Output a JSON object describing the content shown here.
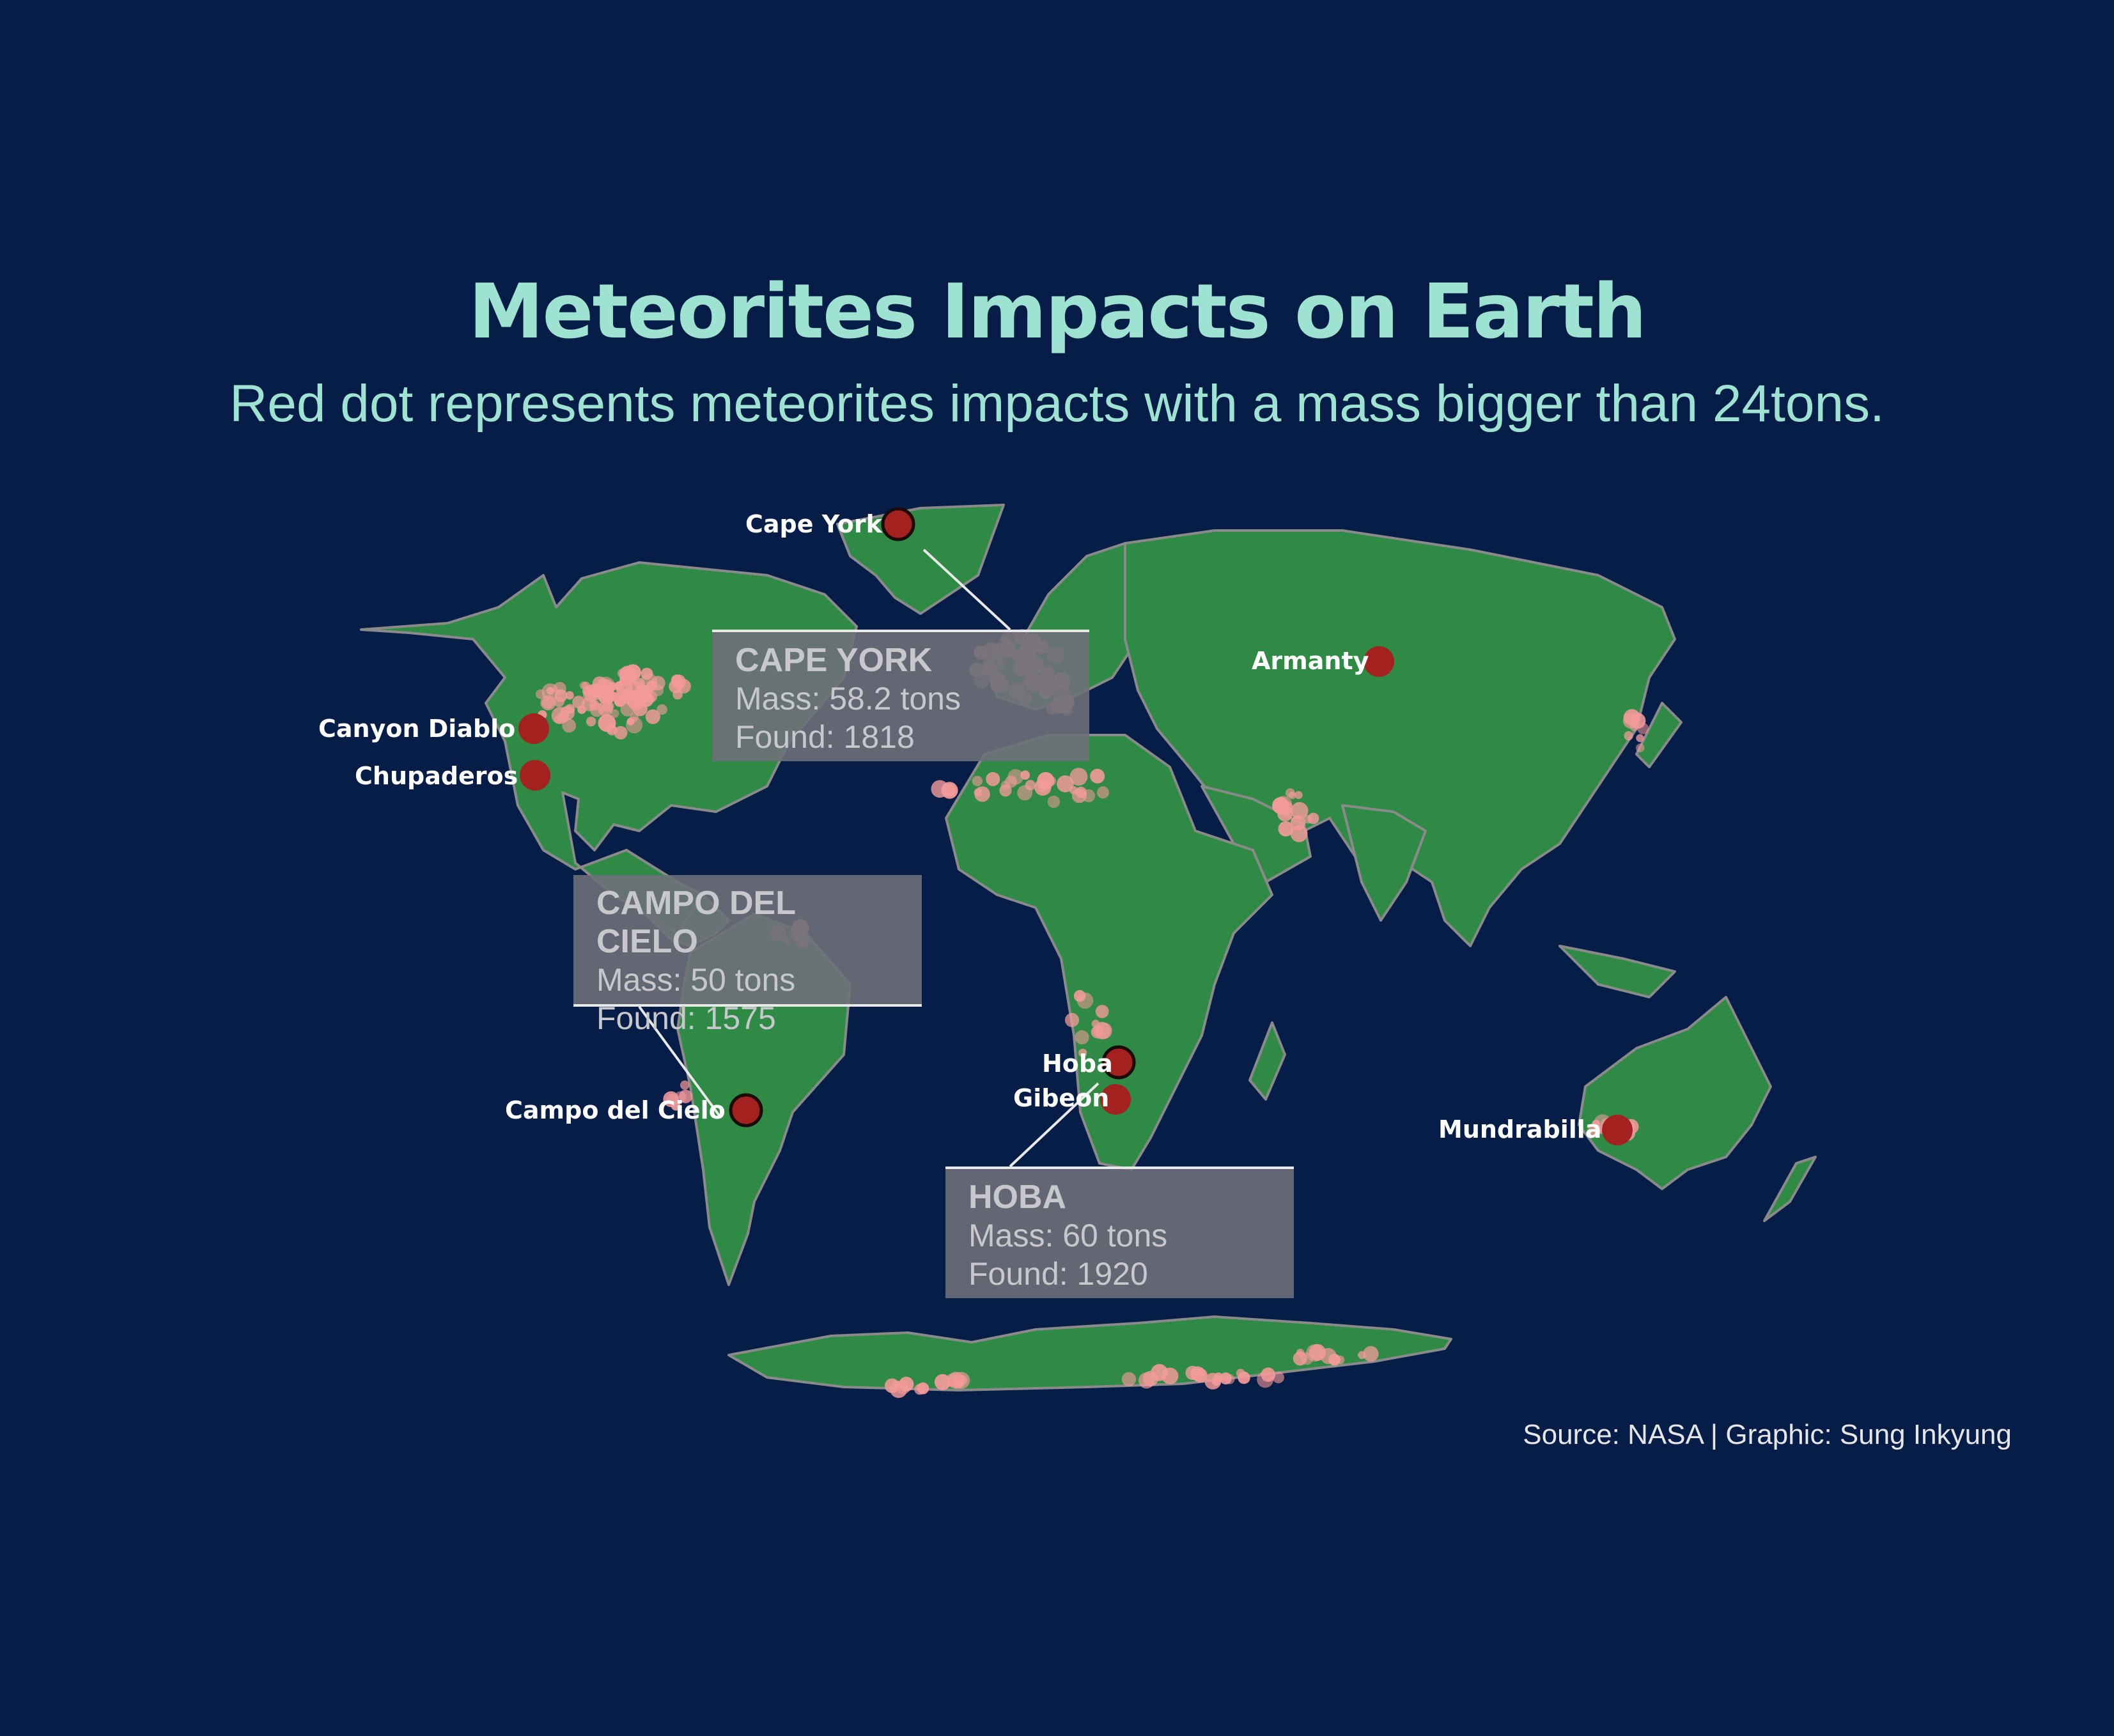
{
  "title": "Meteorites Impacts on Earth",
  "subtitle": "Red dot represents meteorites impacts with a mass bigger than 24tons.",
  "source": "Source: NASA | Graphic: Sung Inkyung",
  "colors": {
    "background": "#061d48",
    "land": "#2e8a45",
    "border": "#8a8a8a",
    "small_impact": "#f39a9a",
    "large_impact": "#a3211f",
    "title": "#9ee3d2"
  },
  "large_meteorites": [
    {
      "name": "Cape York",
      "lat": 76.1,
      "lon": -64.9
    },
    {
      "name": "Canyon Diablo",
      "lat": 35.0,
      "lon": -111.0
    },
    {
      "name": "Chupaderos",
      "lat": 27.0,
      "lon": -105.1
    },
    {
      "name": "Campo del Cielo",
      "lat": -27.5,
      "lon": -61.7
    },
    {
      "name": "Hoba",
      "lat": -19.6,
      "lon": 17.9
    },
    {
      "name": "Gibeon",
      "lat": -25.5,
      "lon": 18.0
    },
    {
      "name": "Armanty",
      "lat": 47.0,
      "lon": 88.0
    },
    {
      "name": "Mundrabilla",
      "lat": -30.8,
      "lon": 127.5
    }
  ],
  "callouts": {
    "cape_york": {
      "name": "CAPE YORK",
      "mass": "Mass: 58.2 tons",
      "found": "Found: 1818"
    },
    "campo": {
      "name": "CAMPO DEL CIELO",
      "mass": "Mass: 50 tons",
      "found": "Found: 1575"
    },
    "hoba": {
      "name": "HOBA",
      "mass": "Mass: 60 tons",
      "found": "Found: 1920"
    }
  }
}
